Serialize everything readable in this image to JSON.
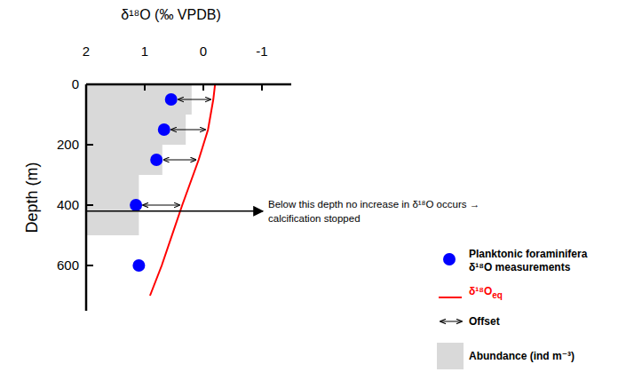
{
  "chart_data": {
    "type": "scatter",
    "title": "δ¹⁸O (‰ VPDB)",
    "y_label": "Depth (m)",
    "xlim": [
      2,
      -1.5
    ],
    "ylim": [
      0,
      750
    ],
    "xticks": [
      2,
      1,
      0,
      -1
    ],
    "yticks": [
      0,
      200,
      400,
      600
    ],
    "series": [
      {
        "name": "Planktonic foraminifera δ¹⁸O measurements",
        "type": "scatter",
        "color": "#0000ff",
        "marker": "circle",
        "x": [
          0.55,
          0.67,
          0.8,
          1.15,
          1.1
        ],
        "y": [
          50,
          150,
          250,
          400,
          600
        ]
      },
      {
        "name": "δ¹⁸O",
        "name_subscript": "eq",
        "type": "line",
        "color": "#ff0000",
        "line_style": "solid",
        "x": [
          -0.2,
          -0.17,
          -0.08,
          0.08,
          0.36,
          0.71,
          0.91
        ],
        "y": [
          0,
          50,
          150,
          250,
          400,
          600,
          700
        ]
      }
    ],
    "offset": {
      "name": "Offset",
      "depths": [
        50,
        150,
        250,
        400
      ]
    },
    "abundance": {
      "name": "Abundance (ind m⁻³)",
      "color": "#d9d9d9",
      "depth_edges": [
        0,
        100,
        200,
        300,
        500
      ],
      "values": [
        0.2,
        0.3,
        0.7,
        1.1
      ]
    },
    "annotation": {
      "lines": [
        "Below this depth no increase in δ¹⁸O occurs →",
        "calcification stopped"
      ],
      "depth": 420
    }
  }
}
